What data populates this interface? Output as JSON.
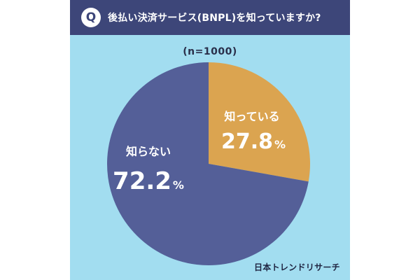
{
  "header": {
    "badge": "Q",
    "question": "後払い決済サービス(BNPL)を知っていますか?"
  },
  "sample_note": "(n=1000)",
  "brand": "日本トレンドリサーチ",
  "colors": {
    "header_bg": "#3d4679",
    "background": "#a2ddf0",
    "know": "#dba450",
    "dont_know": "#545f98"
  },
  "chart_data": {
    "type": "pie",
    "title": "後払い決済サービス(BNPL)を知っていますか?",
    "note": "(n=1000)",
    "slices": [
      {
        "label": "知っている",
        "value": 27.8,
        "unit": "%",
        "color": "#dba450"
      },
      {
        "label": "知らない",
        "value": 72.2,
        "unit": "%",
        "color": "#545f98"
      }
    ]
  }
}
